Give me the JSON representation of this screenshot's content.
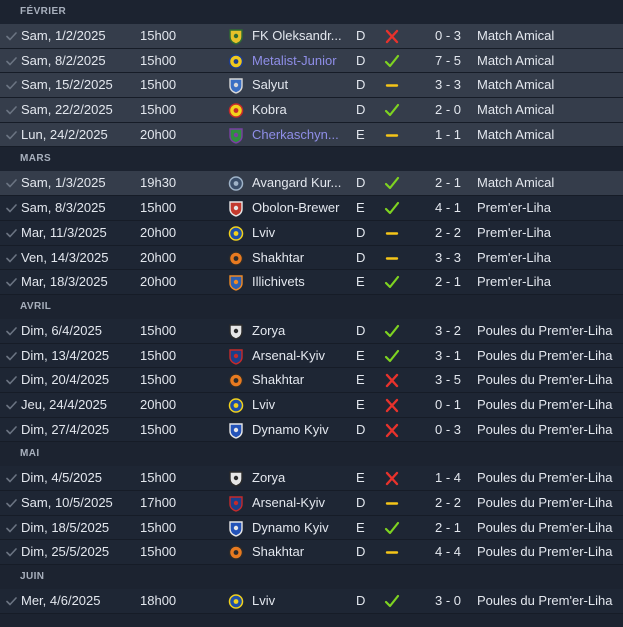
{
  "colors": {
    "win": "#7ed321",
    "loss": "#e8322c",
    "draw": "#f5c518",
    "link": "#8f8ee8",
    "row_highlight": "#353d4b"
  },
  "months": [
    {
      "label": "FÉVRIER",
      "matches": [
        {
          "date": "Sam, 1/2/2025",
          "time": "15h00",
          "opponent": "FK Oleksandr...",
          "crest": "crest-oleksandriya",
          "venue": "D",
          "result": "loss",
          "score": "0 - 3",
          "competition": "Match Amical",
          "highlight": true,
          "link": false
        },
        {
          "date": "Sam, 8/2/2025",
          "time": "15h00",
          "opponent": "Metalist-Junior",
          "crest": "crest-metalist",
          "venue": "D",
          "result": "win",
          "score": "7 - 5",
          "competition": "Match Amical",
          "highlight": true,
          "link": true
        },
        {
          "date": "Sam, 15/2/2025",
          "time": "15h00",
          "opponent": "Salyut",
          "crest": "crest-salyut",
          "venue": "D",
          "result": "draw",
          "score": "3 - 3",
          "competition": "Match Amical",
          "highlight": true,
          "link": false
        },
        {
          "date": "Sam, 22/2/2025",
          "time": "15h00",
          "opponent": "Kobra",
          "crest": "crest-kobra",
          "venue": "D",
          "result": "win",
          "score": "2 - 0",
          "competition": "Match Amical",
          "highlight": true,
          "link": false
        },
        {
          "date": "Lun, 24/2/2025",
          "time": "20h00",
          "opponent": "Cherkaschyn...",
          "crest": "crest-cherkashchyna",
          "venue": "E",
          "result": "draw",
          "score": "1 - 1",
          "competition": "Match Amical",
          "highlight": true,
          "link": true
        }
      ]
    },
    {
      "label": "MARS",
      "matches": [
        {
          "date": "Sam, 1/3/2025",
          "time": "19h30",
          "opponent": "Avangard Kur...",
          "crest": "crest-avangard",
          "venue": "D",
          "result": "win",
          "score": "2 - 1",
          "competition": "Match Amical",
          "highlight": true,
          "link": false
        },
        {
          "date": "Sam, 8/3/2025",
          "time": "15h00",
          "opponent": "Obolon-Brewer",
          "crest": "crest-obolon",
          "venue": "E",
          "result": "win",
          "score": "4 - 1",
          "competition": "Prem'er-Liha",
          "highlight": false,
          "link": false
        },
        {
          "date": "Mar, 11/3/2025",
          "time": "20h00",
          "opponent": "Lviv",
          "crest": "crest-lviv",
          "venue": "D",
          "result": "draw",
          "score": "2 - 2",
          "competition": "Prem'er-Liha",
          "highlight": false,
          "link": false
        },
        {
          "date": "Ven, 14/3/2025",
          "time": "20h00",
          "opponent": "Shakhtar",
          "crest": "crest-shakhtar",
          "venue": "D",
          "result": "draw",
          "score": "3 - 3",
          "competition": "Prem'er-Liha",
          "highlight": false,
          "link": false
        },
        {
          "date": "Mar, 18/3/2025",
          "time": "20h00",
          "opponent": "Illichivets",
          "crest": "crest-illichivets",
          "venue": "E",
          "result": "win",
          "score": "2 - 1",
          "competition": "Prem'er-Liha",
          "highlight": false,
          "link": false
        }
      ]
    },
    {
      "label": "AVRIL",
      "matches": [
        {
          "date": "Dim, 6/4/2025",
          "time": "15h00",
          "opponent": "Zorya",
          "crest": "crest-zorya",
          "venue": "D",
          "result": "win",
          "score": "3 - 2",
          "competition": "Poules du Prem'er-Liha",
          "highlight": false,
          "link": false
        },
        {
          "date": "Dim, 13/4/2025",
          "time": "15h00",
          "opponent": "Arsenal-Kyiv",
          "crest": "crest-arsenal-kyiv",
          "venue": "E",
          "result": "win",
          "score": "3 - 1",
          "competition": "Poules du Prem'er-Liha",
          "highlight": false,
          "link": false
        },
        {
          "date": "Dim, 20/4/2025",
          "time": "15h00",
          "opponent": "Shakhtar",
          "crest": "crest-shakhtar",
          "venue": "E",
          "result": "loss",
          "score": "3 - 5",
          "competition": "Poules du Prem'er-Liha",
          "highlight": false,
          "link": false
        },
        {
          "date": "Jeu, 24/4/2025",
          "time": "20h00",
          "opponent": "Lviv",
          "crest": "crest-lviv",
          "venue": "E",
          "result": "loss",
          "score": "0 - 1",
          "competition": "Poules du Prem'er-Liha",
          "highlight": false,
          "link": false
        },
        {
          "date": "Dim, 27/4/2025",
          "time": "15h00",
          "opponent": "Dynamo Kyiv",
          "crest": "crest-dynamo-kyiv",
          "venue": "D",
          "result": "loss",
          "score": "0 - 3",
          "competition": "Poules du Prem'er-Liha",
          "highlight": false,
          "link": false
        }
      ]
    },
    {
      "label": "MAI",
      "matches": [
        {
          "date": "Dim, 4/5/2025",
          "time": "15h00",
          "opponent": "Zorya",
          "crest": "crest-zorya",
          "venue": "E",
          "result": "loss",
          "score": "1 - 4",
          "competition": "Poules du Prem'er-Liha",
          "highlight": false,
          "link": false
        },
        {
          "date": "Sam, 10/5/2025",
          "time": "17h00",
          "opponent": "Arsenal-Kyiv",
          "crest": "crest-arsenal-kyiv",
          "venue": "D",
          "result": "draw",
          "score": "2 - 2",
          "competition": "Poules du Prem'er-Liha",
          "highlight": false,
          "link": false
        },
        {
          "date": "Dim, 18/5/2025",
          "time": "15h00",
          "opponent": "Dynamo Kyiv",
          "crest": "crest-dynamo-kyiv",
          "venue": "E",
          "result": "win",
          "score": "2 - 1",
          "competition": "Poules du Prem'er-Liha",
          "highlight": false,
          "link": false
        },
        {
          "date": "Dim, 25/5/2025",
          "time": "15h00",
          "opponent": "Shakhtar",
          "crest": "crest-shakhtar",
          "venue": "D",
          "result": "draw",
          "score": "4 - 4",
          "competition": "Poules du Prem'er-Liha",
          "highlight": false,
          "link": false
        }
      ]
    },
    {
      "label": "JUIN",
      "matches": [
        {
          "date": "Mer, 4/6/2025",
          "time": "18h00",
          "opponent": "Lviv",
          "crest": "crest-lviv",
          "venue": "D",
          "result": "win",
          "score": "3 - 0",
          "competition": "Poules du Prem'er-Liha",
          "highlight": false,
          "link": false
        }
      ]
    }
  ]
}
